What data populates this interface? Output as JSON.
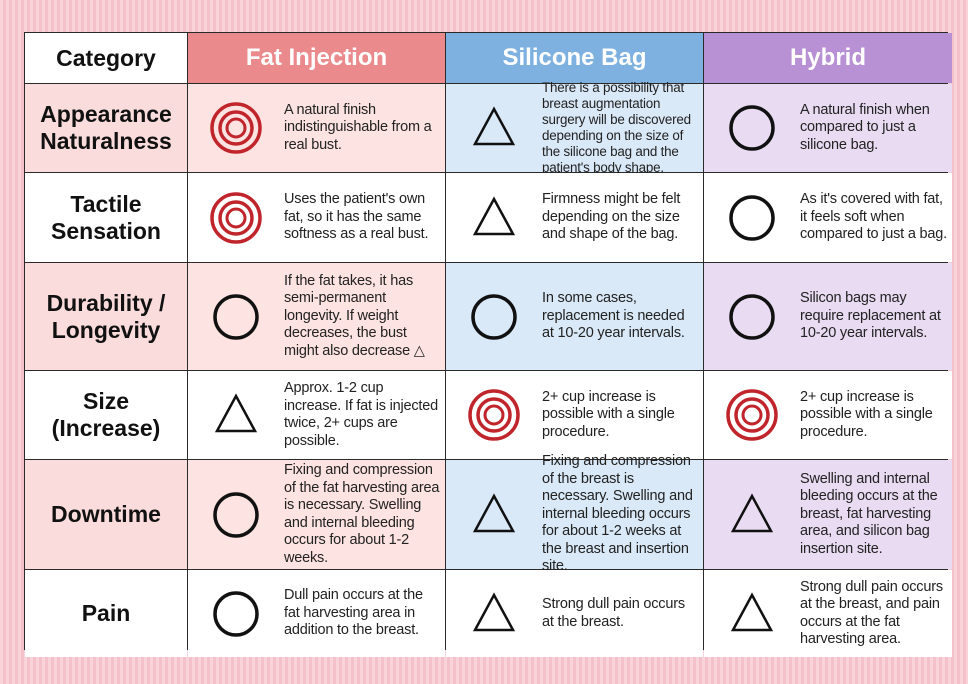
{
  "header": {
    "category": "Category",
    "fat": "Fat Injection",
    "silicone": "Silicone Bag",
    "hybrid": "Hybrid"
  },
  "symbol_legend": {
    "double-circle-icon": "double circle",
    "circle-icon": "circle",
    "triangle-icon": "triangle"
  },
  "colors": {
    "fat_header": "#ea8a8c",
    "silicone_header": "#7eb1e0",
    "hybrid_header": "#b890d4",
    "double_circle": "#c0252c"
  },
  "rows": [
    {
      "label": "Appearance Naturalness",
      "fat": {
        "symbol": "double-circle",
        "text": "A natural finish indistinguishable from a real bust."
      },
      "silicone": {
        "symbol": "triangle",
        "text": "There is a possibility that breast augmentation surgery will be discovered depending on the size of the silicone bag and the patient's body shape."
      },
      "hybrid": {
        "symbol": "circle",
        "text": "A natural finish when compared to just a silicone bag."
      }
    },
    {
      "label": "Tactile Sensation",
      "fat": {
        "symbol": "double-circle",
        "text": "Uses the patient's own fat, so it has the same softness as a real bust."
      },
      "silicone": {
        "symbol": "triangle",
        "text": "Firmness might be felt depending on the size and shape of the bag."
      },
      "hybrid": {
        "symbol": "circle",
        "text": "As it's covered with fat, it feels soft when compared to just a bag."
      }
    },
    {
      "label": "Durability / Longevity",
      "fat": {
        "symbol": "circle",
        "text": "If the fat takes, it has semi-permanent longevity. If weight decreases, the bust might also decrease △"
      },
      "silicone": {
        "symbol": "circle",
        "text": "In some cases, replacement is needed at 10-20 year intervals."
      },
      "hybrid": {
        "symbol": "circle",
        "text": "Silicon bags may require replacement at 10-20 year intervals."
      }
    },
    {
      "label": "Size (Increase)",
      "fat": {
        "symbol": "triangle",
        "text": "Approx. 1-2 cup increase. If fat is injected twice, 2+ cups are possible."
      },
      "silicone": {
        "symbol": "double-circle",
        "text": "2+ cup increase is possible with a single procedure."
      },
      "hybrid": {
        "symbol": "double-circle",
        "text": "2+ cup increase is possible with a single procedure."
      }
    },
    {
      "label": "Downtime",
      "fat": {
        "symbol": "circle",
        "text": "Fixing and compression of the fat harvesting area is necessary. Swelling and internal bleeding occurs for about 1-2 weeks."
      },
      "silicone": {
        "symbol": "triangle",
        "text": "Fixing and compression of the breast is necessary. Swelling and internal bleeding occurs for about 1-2 weeks at the breast and insertion site."
      },
      "hybrid": {
        "symbol": "triangle",
        "text": "Swelling and internal bleeding occurs at the breast, fat harvesting area, and silicon bag insertion site."
      }
    },
    {
      "label": "Pain",
      "fat": {
        "symbol": "circle",
        "text": "Dull pain occurs at the fat harvesting area in addition to the breast."
      },
      "silicone": {
        "symbol": "triangle",
        "text": "Strong dull pain occurs at the breast."
      },
      "hybrid": {
        "symbol": "triangle",
        "text": "Strong dull pain occurs at the breast, and pain occurs at the fat harvesting area."
      }
    }
  ]
}
